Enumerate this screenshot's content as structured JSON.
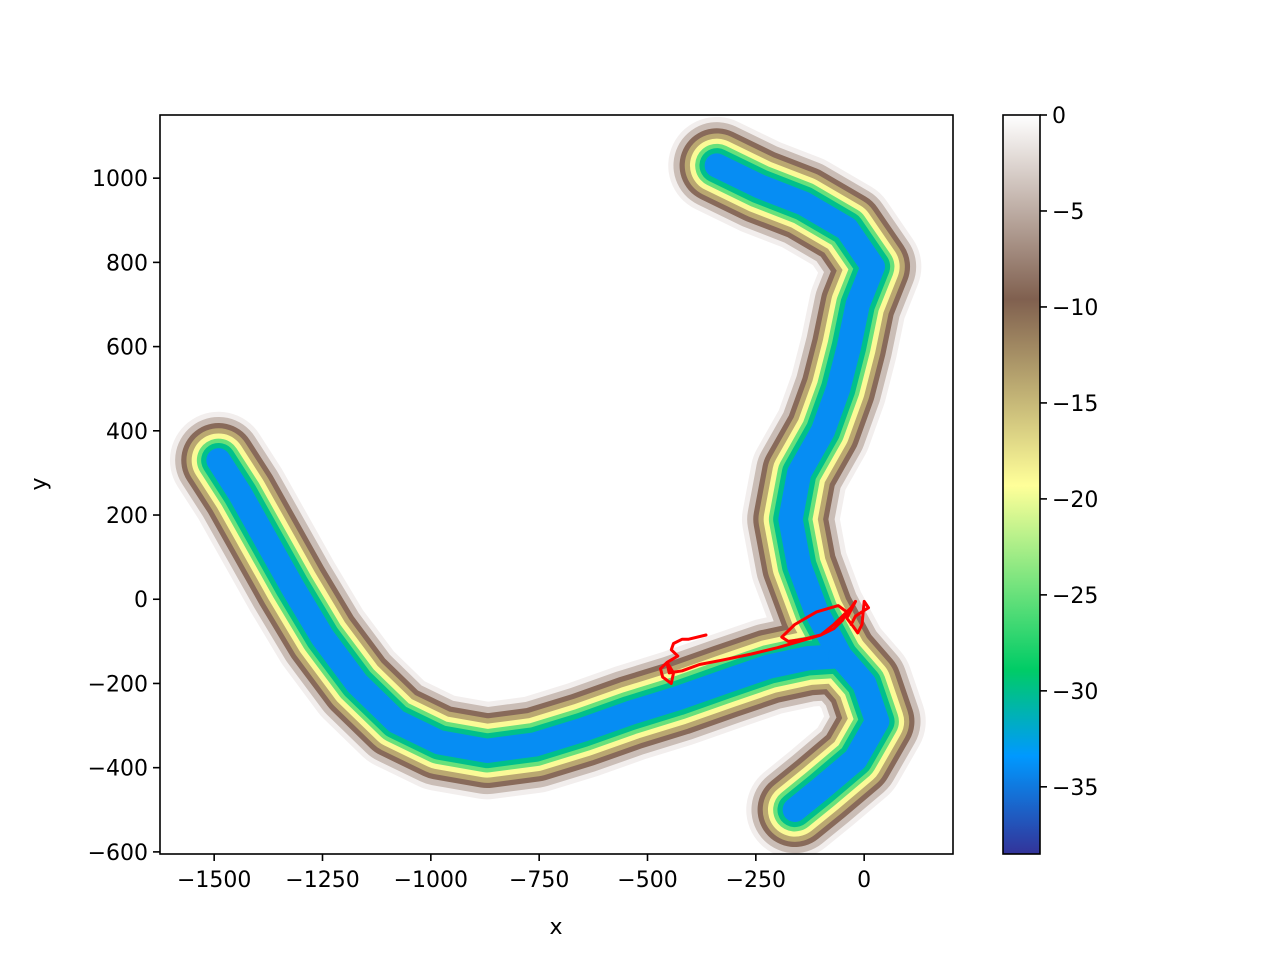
{
  "chart_data": {
    "type": "scatter",
    "title": "",
    "xlabel": "x",
    "ylabel": "y",
    "xlim": [
      -1625,
      205
    ],
    "ylim": [
      -605,
      1150
    ],
    "xticks": [
      -1500,
      -1250,
      -1000,
      -750,
      -500,
      -250,
      0
    ],
    "xtick_labels": [
      "−1500",
      "−1250",
      "−1000",
      "−750",
      "−500",
      "−250",
      "0"
    ],
    "yticks": [
      -600,
      -400,
      -200,
      0,
      200,
      400,
      600,
      800,
      1000
    ],
    "ytick_labels": [
      "−600",
      "−400",
      "−200",
      "0",
      "200",
      "400",
      "600",
      "800",
      "1000"
    ],
    "colormap": "terrain",
    "colorbar": {
      "min": -38.5,
      "max": 0,
      "ticks": [
        0,
        -5,
        -10,
        -15,
        -20,
        -25,
        -30,
        -35
      ],
      "tick_labels": [
        "0",
        "−5",
        "−10",
        "−15",
        "−20",
        "−25",
        "−30",
        "−35"
      ],
      "stops": [
        {
          "v": -38.5,
          "c": "#333399"
        },
        {
          "v": -33.4,
          "c": "#0099ff"
        },
        {
          "v": -28.9,
          "c": "#00cc66"
        },
        {
          "v": -19.3,
          "c": "#ffff99"
        },
        {
          "v": -9.6,
          "c": "#80604f"
        },
        {
          "v": 0,
          "c": "#ffffff"
        }
      ]
    },
    "channel": {
      "description_free": true,
      "centerline": [
        [
          -1490,
          330
        ],
        [
          -1440,
          250
        ],
        [
          -1380,
          140
        ],
        [
          -1320,
          30
        ],
        [
          -1250,
          -90
        ],
        [
          -1170,
          -200
        ],
        [
          -1080,
          -290
        ],
        [
          -980,
          -340
        ],
        [
          -870,
          -360
        ],
        [
          -760,
          -345
        ],
        [
          -650,
          -310
        ],
        [
          -540,
          -270
        ],
        [
          -430,
          -235
        ],
        [
          -320,
          -195
        ],
        [
          -220,
          -160
        ],
        [
          -130,
          -140
        ],
        [
          -55,
          -135
        ]
      ],
      "north_arm": [
        [
          -55,
          -135
        ],
        [
          -110,
          -30
        ],
        [
          -150,
          80
        ],
        [
          -170,
          190
        ],
        [
          -150,
          300
        ],
        [
          -95,
          400
        ],
        [
          -60,
          500
        ],
        [
          -35,
          600
        ],
        [
          -15,
          700
        ],
        [
          20,
          790
        ],
        [
          -40,
          880
        ],
        [
          -140,
          940
        ],
        [
          -240,
          980
        ],
        [
          -340,
          1030
        ]
      ],
      "south_arm": [
        [
          -55,
          -135
        ],
        [
          0,
          -200
        ],
        [
          30,
          -290
        ],
        [
          -20,
          -380
        ],
        [
          -100,
          -450
        ],
        [
          -160,
          -500
        ]
      ],
      "depth_levels": [
        {
          "depth": -1,
          "half_width": 112
        },
        {
          "depth": -4,
          "half_width": 100
        },
        {
          "depth": -9,
          "half_width": 86
        },
        {
          "depth": -14,
          "half_width": 74
        },
        {
          "depth": -19,
          "half_width": 62
        },
        {
          "depth": -25,
          "half_width": 50
        },
        {
          "depth": -30,
          "half_width": 40
        },
        {
          "depth": -34,
          "half_width": 28
        }
      ]
    },
    "series": [
      {
        "style": "line",
        "color": "#ff0000",
        "x": [
          -365,
          -405,
          -420,
          -440,
          -445,
          -430,
          -455,
          -470,
          -465,
          -445,
          -440,
          -455,
          -450,
          -420,
          -380,
          -330,
          -260,
          -200,
          -150,
          -100,
          -70,
          -50,
          -40,
          -60,
          -110,
          -160,
          -190,
          -175,
          -140,
          -100,
          -70,
          -50,
          -30,
          -20,
          -40,
          -25,
          -15,
          -5,
          0,
          10,
          -5,
          -20,
          -30
        ],
        "y": [
          -85,
          -95,
          -95,
          -105,
          -120,
          -135,
          -150,
          -165,
          -185,
          -200,
          -175,
          -150,
          -175,
          -170,
          -155,
          -145,
          -130,
          -115,
          -100,
          -85,
          -70,
          -50,
          -30,
          -15,
          -30,
          -60,
          -90,
          -100,
          -95,
          -85,
          -60,
          -40,
          -20,
          -5,
          -45,
          -65,
          -80,
          -60,
          -5,
          -20,
          -30,
          -40,
          -60
        ]
      }
    ]
  }
}
